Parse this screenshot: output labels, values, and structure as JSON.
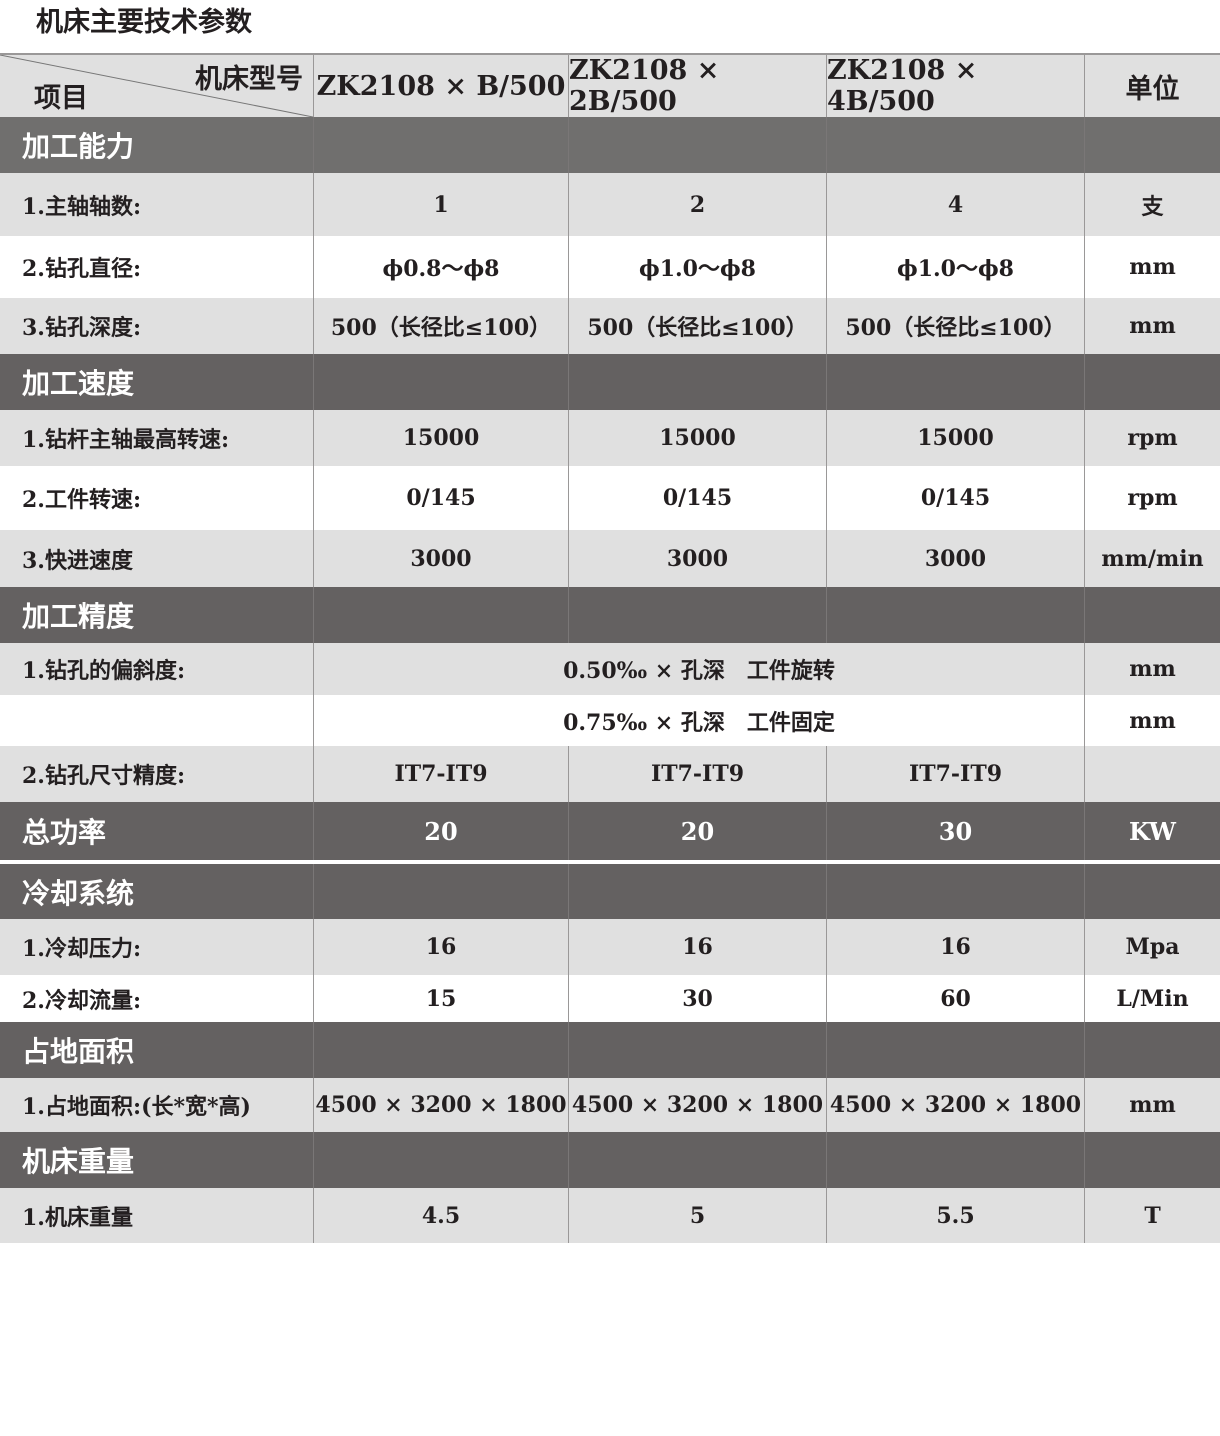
{
  "title": "机床主要技术参数",
  "header": {
    "corner_top": "机床型号",
    "corner_bottom": "项目",
    "models": [
      "ZK2108 × B/500",
      "ZK2108 × 2B/500",
      "ZK2108 × 4B/500"
    ],
    "unit": "单位"
  },
  "colors": {
    "section": "#646161",
    "row_light": "#e0e0e0",
    "row_white": "#ffffff"
  },
  "rows": [
    {
      "type": "section",
      "label": "加工能力",
      "values": [
        "",
        "",
        ""
      ],
      "unit": ""
    },
    {
      "type": "light",
      "label": "1.主轴轴数:",
      "values": [
        "1",
        "2",
        "4"
      ],
      "unit": "支"
    },
    {
      "type": "white",
      "label": "2.钻孔直径:",
      "values": [
        "ϕ0.8～ϕ8",
        "ϕ1.0～ϕ8",
        "ϕ1.0～ϕ8"
      ],
      "unit": "mm"
    },
    {
      "type": "light",
      "label": "3.钻孔深度:",
      "values": [
        "500（长径比≤100）",
        "500（长径比≤100）",
        "500（长径比≤100）"
      ],
      "unit": "mm"
    },
    {
      "type": "section",
      "label": "加工速度",
      "values": [
        "",
        "",
        ""
      ],
      "unit": ""
    },
    {
      "type": "light",
      "label": "1.钻杆主轴最高转速:",
      "values": [
        "15000",
        "15000",
        "15000"
      ],
      "unit": "rpm"
    },
    {
      "type": "white",
      "label": "2.工件转速:",
      "values": [
        "0/145",
        "0/145",
        "0/145"
      ],
      "unit": "rpm"
    },
    {
      "type": "light",
      "label": "3.快进速度",
      "values": [
        "3000",
        "3000",
        "3000"
      ],
      "unit": "mm/min"
    },
    {
      "type": "section",
      "label": "加工精度",
      "values": [
        "",
        "",
        ""
      ],
      "unit": ""
    },
    {
      "type": "light",
      "label": "1.钻孔的偏斜度:",
      "merged": "0.50‰ × 孔深　工件旋转",
      "unit": "mm"
    },
    {
      "type": "white",
      "label": "",
      "merged": "0.75‰ × 孔深　工件固定",
      "unit": "mm"
    },
    {
      "type": "light",
      "label": "2.钻孔尺寸精度:",
      "values": [
        "IT7-IT9",
        "IT7-IT9",
        "IT7-IT9"
      ],
      "unit": ""
    },
    {
      "type": "section",
      "label": "总功率",
      "values": [
        "20",
        "20",
        "30"
      ],
      "unit": "KW"
    },
    {
      "type": "section",
      "label": "冷却系统",
      "values": [
        "",
        "",
        ""
      ],
      "unit": ""
    },
    {
      "type": "light",
      "label": "1.冷却压力:",
      "values": [
        "16",
        "16",
        "16"
      ],
      "unit": "Mpa"
    },
    {
      "type": "white",
      "label": "2.冷却流量:",
      "values": [
        "15",
        "30",
        "60"
      ],
      "unit": "L/Min"
    },
    {
      "type": "section",
      "label": "占地面积",
      "values": [
        "",
        "",
        ""
      ],
      "unit": ""
    },
    {
      "type": "light",
      "label": "1.占地面积:(长*宽*高)",
      "values": [
        "4500 × 3200 × 1800",
        "4500 × 3200 × 1800",
        "4500 × 3200 × 1800"
      ],
      "unit": "mm"
    },
    {
      "type": "section",
      "label": "机床重量",
      "values": [
        "",
        "",
        ""
      ],
      "unit": ""
    },
    {
      "type": "light",
      "label": "1.机床重量",
      "values": [
        "4.5",
        "5",
        "5.5"
      ],
      "unit": "T"
    }
  ]
}
